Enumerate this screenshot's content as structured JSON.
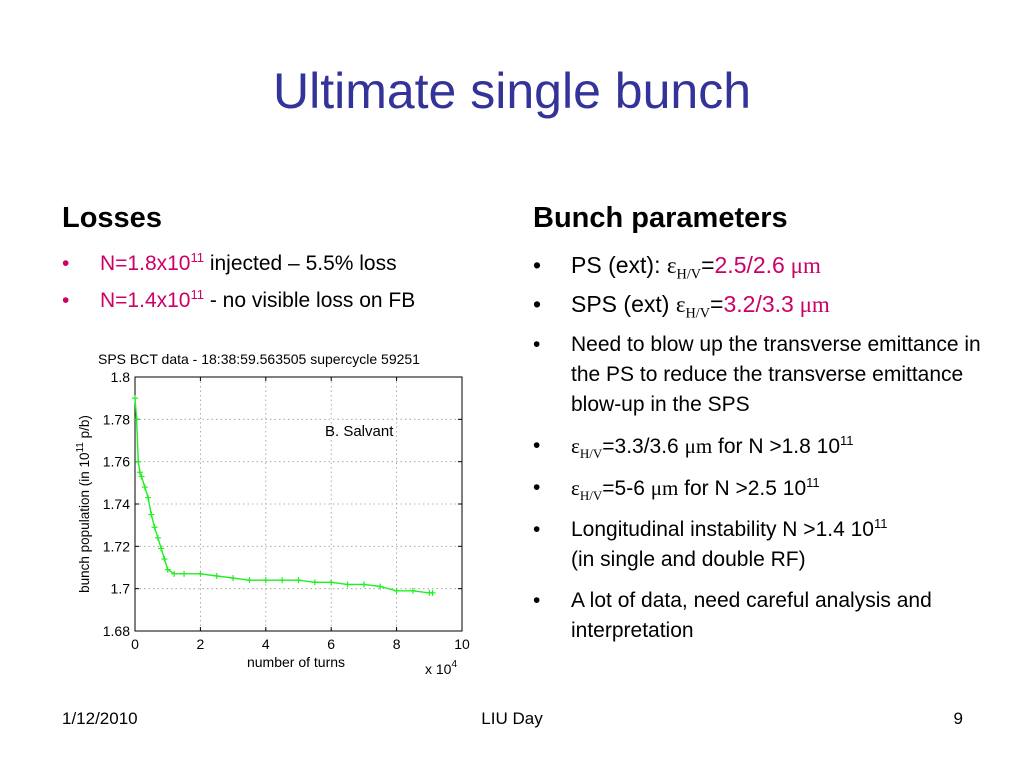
{
  "slide": {
    "title": "Ultimate single bunch",
    "left_heading": "Losses",
    "right_heading": "Bunch parameters",
    "bullet_symbol": "•",
    "left_bullets": [
      {
        "prefix": "N=1.8x10",
        "exp": "11",
        "rest": " injected – 5.5% loss"
      },
      {
        "prefix": "N=1.4x10",
        "exp": "11",
        "rest": "  - no visible loss on FB"
      }
    ],
    "right_bullets": {
      "ps": {
        "label": "PS (ext): ",
        "eps": "ε",
        "sub": "H/V",
        "eq": "=",
        "value": "2.5/2.6",
        "unit": " μm"
      },
      "sps": {
        "label": "SPS (ext) ",
        "eps": "ε",
        "sub": "H/V",
        "eq": "=",
        "value": "3.2/3.3",
        "unit": " μm"
      },
      "blowup": "Need to blow up the transverse emittance in the PS to reduce the transverse emittance blow-up in the SPS",
      "eps1": {
        "eps": "ε",
        "sub": "H/V",
        "eq": "=",
        "value": "3.3/3.6 ",
        "unit": "μm",
        "rest": " for N >1.8 10",
        "exp": "11"
      },
      "eps2": {
        "eps": "ε",
        "sub": "H/V",
        "eq": "=",
        "value": "5-6 ",
        "unit": "μm",
        "rest": " for N >2.5 10",
        "exp": "11"
      },
      "longitudinal": {
        "text": "Longitudinal instability N >1.4 10",
        "exp": "11",
        "rest": "(in single and double RF)"
      },
      "data": "A lot of data, need careful analysis and interpretation"
    },
    "footer": {
      "date": "1/12/2010",
      "center": "LIU Day",
      "page": "9"
    }
  },
  "colors": {
    "title": "#333399",
    "highlight": "#cc0066",
    "series": "#22ee22"
  },
  "chart_data": {
    "type": "line",
    "title": "SPS BCT data -  18:38:59.563505  supercycle 59251",
    "xlabel": "number of turns",
    "x_multiplier": "x 10",
    "x_multiplier_exp": "4",
    "ylabel_prefix": "bunch population (in 10",
    "ylabel_exp": "11",
    "ylabel_suffix": " p/b)",
    "annotation": "B. Salvant",
    "xlim": [
      0,
      100000
    ],
    "ylim": [
      1.68,
      1.8
    ],
    "xticks": [
      0,
      20000,
      40000,
      60000,
      80000,
      100000
    ],
    "xtick_labels": [
      "0",
      "2",
      "4",
      "6",
      "8",
      "10"
    ],
    "yticks": [
      1.68,
      1.7,
      1.72,
      1.74,
      1.76,
      1.78,
      1.8
    ],
    "ytick_labels": [
      "1.68",
      "1.7",
      "1.72",
      "1.74",
      "1.76",
      "1.78",
      "1.8"
    ],
    "grid": true,
    "marker": "+",
    "series": [
      {
        "x": [
          0,
          500,
          1000,
          1500,
          2000,
          3000,
          4000,
          5000,
          6000,
          7000,
          8000,
          9000,
          10000,
          12000,
          15000,
          20000,
          25000,
          30000,
          35000,
          40000,
          45000,
          50000,
          55000,
          60000,
          65000,
          70000,
          75000,
          80000,
          85000,
          90000,
          91000
        ],
        "y": [
          1.79,
          1.78,
          1.76,
          1.755,
          1.753,
          1.748,
          1.743,
          1.735,
          1.729,
          1.724,
          1.719,
          1.714,
          1.709,
          1.707,
          1.707,
          1.707,
          1.706,
          1.705,
          1.704,
          1.704,
          1.704,
          1.704,
          1.703,
          1.703,
          1.702,
          1.702,
          1.701,
          1.699,
          1.699,
          1.698,
          1.698
        ]
      }
    ]
  }
}
